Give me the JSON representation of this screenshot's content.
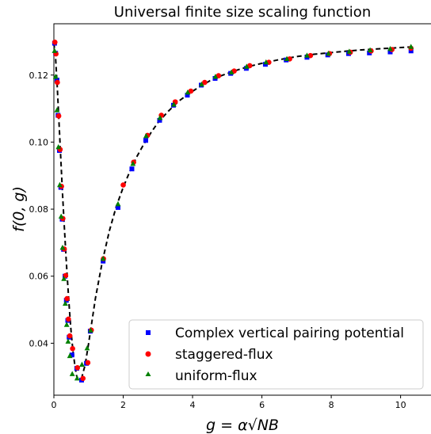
{
  "chart_data": {
    "type": "scatter",
    "title": "Universal finite size scaling function",
    "xlabel": "g = α√NB",
    "ylabel": "f(0, g)",
    "xlim": [
      0,
      10.9
    ],
    "ylim": [
      0.0245,
      0.1353
    ],
    "xticks": [
      0,
      2,
      4,
      6,
      8,
      10
    ],
    "yticks": [
      0.04,
      0.06,
      0.08,
      0.1,
      0.12
    ],
    "ytick_labels": [
      "0.04",
      "0.06",
      "0.08",
      "0.10",
      "0.12"
    ],
    "grid": false,
    "legend": "lower-right",
    "series": [
      {
        "name": "Complex vertical pairing potential",
        "marker": "square",
        "color": "#0000ff",
        "x": [
          0.02,
          0.05,
          0.09,
          0.12,
          0.16,
          0.2,
          0.24,
          0.28,
          0.32,
          0.36,
          0.4,
          0.44,
          0.52,
          0.66,
          0.8,
          0.94,
          1.05,
          1.42,
          1.85,
          2.25,
          2.65,
          3.05,
          3.45,
          3.85,
          4.25,
          4.65,
          5.1,
          5.55,
          6.1,
          6.7,
          7.3,
          7.9,
          8.5,
          9.1,
          9.7,
          10.3
        ],
        "y": [
          0.1295,
          0.1265,
          0.1185,
          0.108,
          0.0975,
          0.0865,
          0.077,
          0.068,
          0.06,
          0.0528,
          0.0468,
          0.0418,
          0.0365,
          0.0325,
          0.029,
          0.034,
          0.0436,
          0.0645,
          0.0805,
          0.092,
          0.1005,
          0.1065,
          0.111,
          0.114,
          0.117,
          0.119,
          0.1205,
          0.122,
          0.1232,
          0.1245,
          0.1253,
          0.126,
          0.1264,
          0.1266,
          0.1269,
          0.1272
        ]
      },
      {
        "name": "staggered-flux",
        "marker": "circle",
        "color": "#ff0000",
        "x": [
          0.03,
          0.06,
          0.1,
          0.14,
          0.18,
          0.22,
          0.26,
          0.3,
          0.34,
          0.38,
          0.42,
          0.46,
          0.54,
          0.68,
          0.84,
          0.98,
          1.08,
          1.43,
          2.0,
          2.3,
          2.7,
          3.1,
          3.5,
          3.95,
          4.35,
          4.75,
          5.2,
          5.65,
          6.2,
          6.8,
          7.4,
          7.95,
          8.55,
          9.15,
          9.75,
          10.3
        ],
        "y": [
          0.1298,
          0.1263,
          0.1178,
          0.1078,
          0.0978,
          0.0868,
          0.0772,
          0.0681,
          0.0602,
          0.0533,
          0.0472,
          0.0422,
          0.0384,
          0.0327,
          0.0295,
          0.0342,
          0.0439,
          0.0652,
          0.0872,
          0.094,
          0.102,
          0.108,
          0.112,
          0.1152,
          0.1178,
          0.1198,
          0.1212,
          0.1228,
          0.1238,
          0.1248,
          0.1258,
          0.1264,
          0.1268,
          0.1272,
          0.1276,
          0.128
        ]
      },
      {
        "name": "uniform-flux",
        "marker": "triangle",
        "color": "#008000",
        "x": [
          0.02,
          0.05,
          0.09,
          0.13,
          0.17,
          0.21,
          0.25,
          0.29,
          0.33,
          0.37,
          0.41,
          0.46,
          0.53,
          0.67,
          0.81,
          0.96,
          1.06,
          1.42,
          1.85,
          2.28,
          2.66,
          3.06,
          3.46,
          3.86,
          4.26,
          4.66,
          5.12,
          5.56,
          6.12,
          6.72,
          7.3,
          7.92,
          8.52,
          9.12,
          9.7,
          10.3
        ],
        "y": [
          0.1272,
          0.1195,
          0.1095,
          0.0985,
          0.0872,
          0.0778,
          0.0685,
          0.0592,
          0.0518,
          0.0455,
          0.0405,
          0.0362,
          0.0308,
          0.0295,
          0.0336,
          0.0385,
          0.0438,
          0.0652,
          0.0815,
          0.0935,
          0.1018,
          0.1072,
          0.1112,
          0.1148,
          0.1172,
          0.1195,
          0.1208,
          0.1225,
          0.1238,
          0.1248,
          0.1258,
          0.1264,
          0.127,
          0.1274,
          0.1278,
          0.1284
        ]
      }
    ],
    "fit_line": {
      "style": "dashed",
      "color": "#000000",
      "x": [
        0.0,
        0.05,
        0.1,
        0.15,
        0.2,
        0.25,
        0.3,
        0.35,
        0.4,
        0.45,
        0.5,
        0.55,
        0.6,
        0.65,
        0.7,
        0.8,
        0.9,
        1.0,
        1.2,
        1.4,
        1.6,
        1.8,
        2.0,
        2.2,
        2.4,
        2.6,
        2.8,
        3.0,
        3.3,
        3.6,
        3.9,
        4.2,
        4.5,
        4.8,
        5.2,
        5.6,
        6.0,
        6.5,
        7.0,
        7.5,
        8.0,
        8.5,
        9.0,
        9.5,
        10.0,
        10.3
      ],
      "y": [
        0.1295,
        0.125,
        0.116,
        0.1055,
        0.095,
        0.0845,
        0.075,
        0.0658,
        0.0575,
        0.0498,
        0.043,
        0.0378,
        0.0338,
        0.0305,
        0.0292,
        0.0296,
        0.0335,
        0.0398,
        0.0535,
        0.0645,
        0.0735,
        0.0808,
        0.0865,
        0.0915,
        0.0958,
        0.0995,
        0.1028,
        0.1058,
        0.1092,
        0.1122,
        0.1145,
        0.1165,
        0.1183,
        0.1197,
        0.1212,
        0.1225,
        0.1235,
        0.1246,
        0.1255,
        0.1262,
        0.1267,
        0.1272,
        0.1276,
        0.1279,
        0.1282,
        0.1284
      ]
    }
  }
}
